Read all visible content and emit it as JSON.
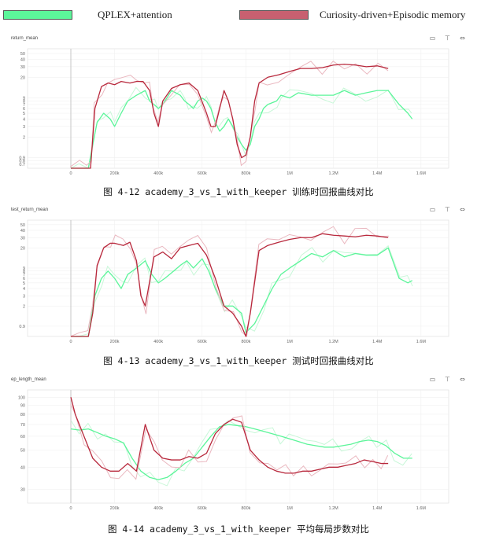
{
  "legend": [
    {
      "label": "QPLEX+attention",
      "color": "#5cf59a"
    },
    {
      "label": "Curiosity-driven+Episodic memory",
      "color": "#c05060"
    }
  ],
  "panels": [
    {
      "title": "return_mean",
      "caption": "图 4-12 academy_3_vs_1_with_keeper 训练时回报曲线对比",
      "toolbar": [
        "frame-icon",
        "pin-icon",
        "expand-icon"
      ]
    },
    {
      "title": "test_return_mean",
      "caption": "图 4-13 academy_3_vs_1_with_keeper 测试时回报曲线对比",
      "toolbar": [
        "frame-icon",
        "pin-icon",
        "expand-icon"
      ]
    },
    {
      "title": "ep_length_mean",
      "caption": "图 4-14 academy_3_vs_1_with_keeper 平均每局步数对比",
      "toolbar": [
        "frame-icon",
        "pin-icon",
        "expand-icon"
      ]
    }
  ],
  "colors": {
    "green": "#5cf59a",
    "green_light": "#c8f7d8",
    "red": "#b8283c",
    "red_light": "#eab8c0"
  },
  "chart_data": [
    {
      "type": "line",
      "title": "return_mean",
      "yscale": "log",
      "xlim": [
        0,
        1650000
      ],
      "ylim": [
        0.6,
        60
      ],
      "x_ticks": [
        "0",
        "200k",
        "400k",
        "600k",
        "800k",
        "1M",
        "1.2M",
        "1.4M",
        "1.6M"
      ],
      "y_ticks": [
        "0.7",
        "0.8",
        "0.9",
        "2",
        "3",
        "4",
        "5",
        "6",
        "7",
        "8",
        "9",
        "20",
        "30",
        "40",
        "50"
      ],
      "series": [
        {
          "name": "QPLEX+attention",
          "x": [
            0,
            40000,
            80000,
            100000,
            120000,
            150000,
            180000,
            200000,
            230000,
            260000,
            300000,
            340000,
            360000,
            380000,
            400000,
            420000,
            460000,
            500000,
            520000,
            540000,
            560000,
            580000,
            600000,
            620000,
            640000,
            660000,
            680000,
            700000,
            720000,
            740000,
            760000,
            780000,
            800000,
            820000,
            840000,
            860000,
            880000,
            900000,
            940000,
            960000,
            1000000,
            1040000,
            1100000,
            1150000,
            1200000,
            1250000,
            1300000,
            1350000,
            1400000,
            1450000,
            1500000,
            1540000,
            1560000
          ],
          "y": [
            0.6,
            0.6,
            0.6,
            1.5,
            3.5,
            5,
            4,
            3,
            5,
            8,
            10,
            12,
            8,
            7,
            6,
            7,
            12,
            10,
            8,
            7,
            6,
            8,
            9,
            8,
            6,
            3.5,
            2.5,
            3,
            4,
            3,
            2,
            1.5,
            1.2,
            1.5,
            3,
            4,
            6,
            7,
            8,
            10,
            9,
            11,
            10,
            10,
            10,
            12,
            10,
            11,
            12,
            12,
            7,
            5,
            4
          ]
        },
        {
          "name": "Curiosity-driven+Episodic memory",
          "x": [
            0,
            40000,
            70000,
            90000,
            110000,
            140000,
            170000,
            200000,
            230000,
            270000,
            300000,
            330000,
            360000,
            380000,
            400000,
            420000,
            460000,
            500000,
            540000,
            580000,
            620000,
            640000,
            660000,
            680000,
            700000,
            720000,
            740000,
            760000,
            780000,
            800000,
            820000,
            840000,
            860000,
            900000,
            950000,
            1000000,
            1050000,
            1100000,
            1150000,
            1200000,
            1250000,
            1300000,
            1350000,
            1400000,
            1450000
          ],
          "y": [
            0.6,
            0.6,
            0.6,
            0.6,
            6,
            14,
            16,
            15,
            17,
            16,
            17,
            17,
            12,
            5,
            3,
            8,
            13,
            15,
            16,
            12,
            5,
            3,
            3,
            6,
            12,
            8,
            4,
            1.5,
            0.9,
            1,
            2,
            8,
            16,
            20,
            22,
            25,
            28,
            28,
            29,
            32,
            33,
            32,
            30,
            31,
            28
          ]
        }
      ]
    },
    {
      "type": "line",
      "title": "test_return_mean",
      "yscale": "log",
      "xlim": [
        0,
        1650000
      ],
      "ylim": [
        0.6,
        60
      ],
      "x_ticks": [
        "0",
        "200k",
        "400k",
        "600k",
        "800k",
        "1M",
        "1.2M",
        "1.4M",
        "1.6M"
      ],
      "y_ticks": [
        "0.9",
        "2",
        "3",
        "4",
        "5",
        "6",
        "7",
        "8",
        "9",
        "20",
        "30",
        "40",
        "50"
      ],
      "series": [
        {
          "name": "QPLEX+attention",
          "x": [
            0,
            40000,
            80000,
            110000,
            140000,
            170000,
            200000,
            230000,
            260000,
            300000,
            340000,
            370000,
            400000,
            430000,
            470000,
            500000,
            530000,
            560000,
            600000,
            630000,
            660000,
            700000,
            740000,
            780000,
            800000,
            840000,
            880000,
            920000,
            960000,
            1000000,
            1050000,
            1100000,
            1150000,
            1200000,
            1250000,
            1300000,
            1350000,
            1400000,
            1450000,
            1500000,
            1540000,
            1560000
          ],
          "y": [
            0.6,
            0.6,
            0.6,
            3,
            6,
            8,
            6,
            4,
            7,
            9,
            12,
            7,
            5,
            6,
            8,
            10,
            12,
            9,
            13,
            8,
            4,
            2,
            2,
            1.5,
            0.7,
            1,
            2,
            4,
            7,
            9,
            12,
            16,
            14,
            18,
            14,
            16,
            15,
            15,
            20,
            6,
            5,
            5.5
          ]
        },
        {
          "name": "Curiosity-driven+Episodic memory",
          "x": [
            0,
            40000,
            80000,
            100000,
            120000,
            150000,
            180000,
            200000,
            240000,
            270000,
            300000,
            320000,
            340000,
            380000,
            420000,
            460000,
            500000,
            540000,
            580000,
            620000,
            660000,
            700000,
            740000,
            780000,
            800000,
            820000,
            860000,
            900000,
            950000,
            1000000,
            1050000,
            1100000,
            1150000,
            1200000,
            1250000,
            1300000,
            1350000,
            1400000,
            1450000
          ],
          "y": [
            0.6,
            0.6,
            0.6,
            1.5,
            10,
            20,
            24,
            24,
            22,
            25,
            12,
            3,
            2,
            14,
            17,
            13,
            20,
            22,
            24,
            15,
            6,
            2,
            1.5,
            0.9,
            0.6,
            1.5,
            18,
            22,
            25,
            28,
            30,
            30,
            35,
            33,
            32,
            31,
            33,
            32,
            30
          ]
        }
      ]
    },
    {
      "type": "line",
      "title": "ep_length_mean",
      "yscale": "log",
      "xlim": [
        0,
        1650000
      ],
      "ylim": [
        25,
        110
      ],
      "x_ticks": [
        "0",
        "200k",
        "400k",
        "600k",
        "800k",
        "1M",
        "1.2M",
        "1.4M",
        "1.6M"
      ],
      "y_ticks": [
        "100",
        "90",
        "80",
        "70",
        "60",
        "50",
        "40",
        "30"
      ],
      "series": [
        {
          "name": "QPLEX+attention",
          "x": [
            0,
            40000,
            80000,
            120000,
            160000,
            200000,
            240000,
            280000,
            320000,
            360000,
            400000,
            440000,
            480000,
            520000,
            560000,
            600000,
            640000,
            680000,
            720000,
            760000,
            800000,
            840000,
            880000,
            920000,
            960000,
            1000000,
            1040000,
            1080000,
            1120000,
            1160000,
            1200000,
            1240000,
            1280000,
            1320000,
            1360000,
            1400000,
            1440000,
            1480000,
            1520000,
            1560000
          ],
          "y": [
            66,
            65,
            66,
            63,
            60,
            58,
            55,
            45,
            38,
            35,
            34,
            35,
            38,
            42,
            45,
            52,
            60,
            68,
            70,
            69,
            68,
            66,
            64,
            62,
            60,
            58,
            56,
            54,
            53,
            52,
            52,
            53,
            54,
            56,
            57,
            56,
            53,
            48,
            45,
            45
          ]
        },
        {
          "name": "Curiosity-driven+Episodic memory",
          "x": [
            0,
            20000,
            60000,
            100000,
            140000,
            180000,
            220000,
            260000,
            300000,
            340000,
            380000,
            420000,
            460000,
            500000,
            540000,
            580000,
            620000,
            660000,
            700000,
            740000,
            780000,
            820000,
            860000,
            900000,
            940000,
            980000,
            1020000,
            1060000,
            1100000,
            1140000,
            1180000,
            1220000,
            1260000,
            1300000,
            1340000,
            1380000,
            1420000,
            1450000
          ],
          "y": [
            100,
            80,
            60,
            45,
            40,
            38,
            38,
            42,
            38,
            70,
            50,
            45,
            44,
            44,
            46,
            45,
            48,
            62,
            70,
            75,
            72,
            50,
            44,
            40,
            38,
            37,
            37,
            38,
            38,
            39,
            40,
            40,
            41,
            42,
            44,
            43,
            42,
            42
          ]
        }
      ]
    }
  ]
}
